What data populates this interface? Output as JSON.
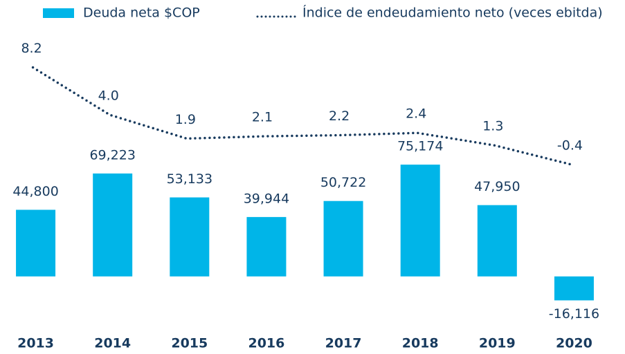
{
  "chart_data": {
    "type": "bar-line",
    "categories": [
      "2013",
      "2014",
      "2015",
      "2016",
      "2017",
      "2018",
      "2019",
      "2020"
    ],
    "series": [
      {
        "name": "Deuda neta $COP",
        "type": "bar",
        "color": "#00b5e8",
        "values": [
          44800,
          69223,
          53133,
          39944,
          50722,
          75174,
          47950,
          -16116
        ],
        "value_labels": [
          "44,800",
          "69,223",
          "53,133",
          "39,944",
          "50,722",
          "75,174",
          "47,950",
          "-16,116"
        ]
      },
      {
        "name": "Índice de endeudamiento neto (veces ebitda)",
        "type": "line",
        "axis": "y2",
        "color": "#173a5e",
        "values": [
          8.2,
          4.0,
          1.9,
          2.1,
          2.2,
          2.4,
          1.3,
          -0.4
        ],
        "value_labels": [
          "8.2",
          "4.0",
          "1.9",
          "2.1",
          "2.2",
          "2.4",
          "1.3",
          "-0.4"
        ]
      }
    ],
    "ylim": [
      -28000,
      158000
    ],
    "y2lim": [
      -14,
      10.5
    ],
    "legend": "top"
  }
}
